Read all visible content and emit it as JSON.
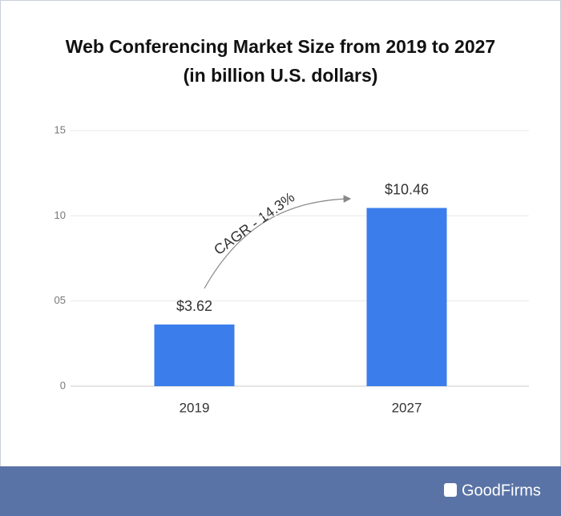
{
  "chart_data": {
    "type": "bar",
    "title": "Web Conferencing Market Size from 2019 to 2027",
    "subtitle": "(in billion U.S. dollars)",
    "categories": [
      "2019",
      "2027"
    ],
    "values": [
      3.62,
      10.46
    ],
    "value_labels": [
      "$3.62",
      "$10.46"
    ],
    "color": "#3b7deb",
    "ylim": [
      0,
      15
    ],
    "yticks": [
      0,
      {
        "value": 5,
        "label": "05"
      },
      10,
      15
    ],
    "grid": true,
    "annotation": "CAGR - 14.3%",
    "brand": "GoodFirms"
  }
}
